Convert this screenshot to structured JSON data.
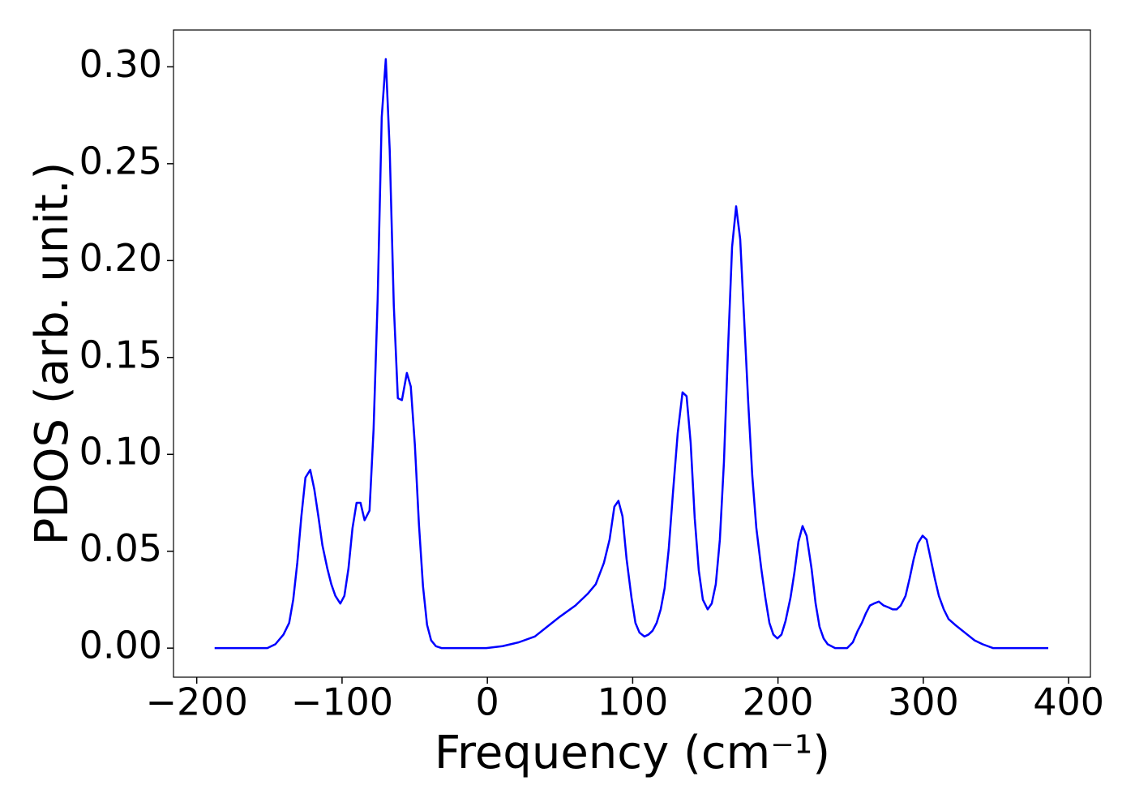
{
  "chart_data": {
    "type": "line",
    "x_label": "Frequency (cm⁻¹)",
    "y_label": "PDOS (arb. unit.)",
    "color": "#0000ff",
    "xlim": [
      -216,
      415
    ],
    "ylim": [
      -0.015,
      0.319
    ],
    "xticks": [
      {
        "value": -200,
        "label": "−200"
      },
      {
        "value": -100,
        "label": "−100"
      },
      0,
      100,
      200,
      300,
      400
    ],
    "yticks": [
      {
        "value": 0,
        "label": "0.00"
      },
      {
        "value": 0.05,
        "label": "0.05"
      },
      {
        "value": 0.1,
        "label": "0.10"
      },
      {
        "value": 0.15,
        "label": "0.15"
      },
      {
        "value": 0.2,
        "label": "0.20"
      },
      {
        "value": 0.25,
        "label": "0.25"
      },
      {
        "value": 0.3,
        "label": "0.30"
      }
    ],
    "x": [
      -187.7,
      -151.4,
      -145.9,
      -140.3,
      -136.4,
      -133.6,
      -130.8,
      -128.0,
      -125.2,
      -121.9,
      -119.1,
      -116.3,
      -113.5,
      -110.1,
      -107.4,
      -104.6,
      -101.2,
      -98.4,
      -95.6,
      -92.8,
      -90.0,
      -87.3,
      -84.5,
      -81.1,
      -78.3,
      -75.5,
      -72.7,
      -69.9,
      -67.2,
      -64.4,
      -61.6,
      -58.8,
      -55.4,
      -52.7,
      -49.9,
      -47.1,
      -44.3,
      -41.5,
      -38.7,
      -35.4,
      -31.4,
      -0.7,
      10.4,
      21.6,
      32.7,
      41.1,
      49.5,
      60.6,
      69.0,
      74.6,
      80.2,
      84.1,
      87.4,
      90.2,
      93.0,
      95.8,
      99.2,
      101.9,
      104.7,
      108.1,
      110.9,
      113.7,
      116.5,
      119.3,
      122.0,
      124.8,
      127.6,
      131.0,
      134.3,
      137.1,
      139.9,
      142.7,
      145.5,
      148.3,
      151.6,
      154.4,
      157.2,
      160.0,
      162.8,
      165.6,
      168.4,
      171.2,
      174.0,
      176.7,
      179.5,
      182.3,
      185.1,
      188.5,
      191.3,
      194.1,
      196.8,
      199.6,
      202.4,
      205.2,
      208.6,
      211.3,
      214.1,
      216.9,
      219.7,
      223.1,
      225.9,
      228.6,
      231.4,
      234.2,
      239.3,
      247.6,
      251.5,
      254.9,
      257.7,
      260.5,
      263.3,
      266.0,
      269.4,
      272.7,
      276.1,
      278.9,
      281.7,
      284.5,
      287.8,
      290.6,
      293.4,
      296.2,
      299.5,
      302.3,
      305.1,
      307.9,
      310.7,
      314.1,
      317.4,
      321.9,
      328.6,
      335.3,
      340.8,
      348.1,
      386.0
    ],
    "values": [
      0,
      0,
      0.002,
      0.007,
      0.013,
      0.025,
      0.044,
      0.068,
      0.088,
      0.092,
      0.082,
      0.068,
      0.053,
      0.041,
      0.033,
      0.027,
      0.023,
      0.027,
      0.041,
      0.062,
      0.075,
      0.075,
      0.066,
      0.071,
      0.113,
      0.18,
      0.274,
      0.304,
      0.257,
      0.177,
      0.129,
      0.128,
      0.142,
      0.135,
      0.105,
      0.064,
      0.032,
      0.012,
      0.004,
      0.001,
      0,
      0,
      0.001,
      0.003,
      0.006,
      0.011,
      0.016,
      0.022,
      0.028,
      0.033,
      0.044,
      0.056,
      0.073,
      0.076,
      0.068,
      0.046,
      0.026,
      0.013,
      0.008,
      0.006,
      0.007,
      0.009,
      0.013,
      0.02,
      0.031,
      0.051,
      0.079,
      0.111,
      0.132,
      0.13,
      0.106,
      0.067,
      0.04,
      0.025,
      0.02,
      0.023,
      0.033,
      0.056,
      0.096,
      0.154,
      0.207,
      0.228,
      0.211,
      0.17,
      0.127,
      0.089,
      0.062,
      0.041,
      0.026,
      0.013,
      0.007,
      0.005,
      0.007,
      0.014,
      0.026,
      0.039,
      0.055,
      0.063,
      0.058,
      0.041,
      0.023,
      0.011,
      0.005,
      0.002,
      0,
      0,
      0.003,
      0.009,
      0.013,
      0.018,
      0.022,
      0.023,
      0.024,
      0.022,
      0.021,
      0.02,
      0.02,
      0.022,
      0.027,
      0.036,
      0.046,
      0.054,
      0.058,
      0.056,
      0.046,
      0.036,
      0.027,
      0.02,
      0.015,
      0.012,
      0.008,
      0.004,
      0.002,
      0,
      0
    ]
  }
}
